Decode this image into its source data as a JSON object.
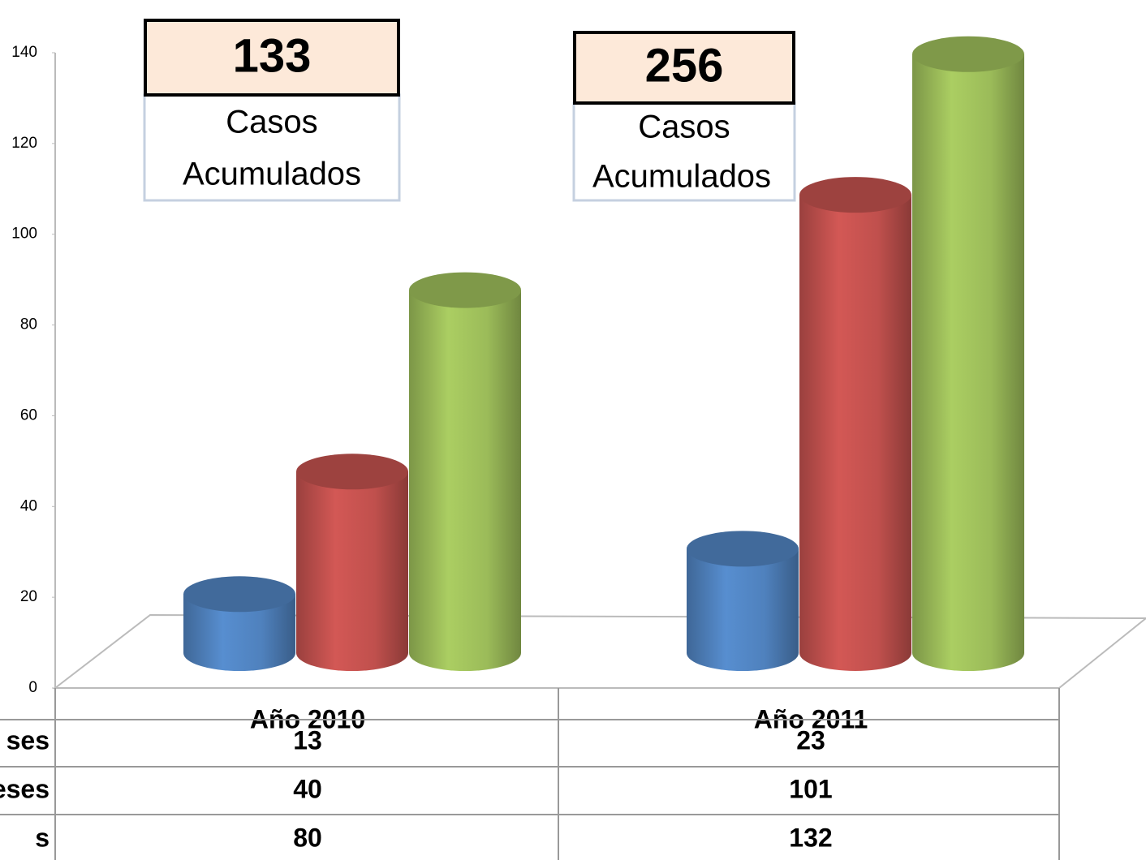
{
  "chart_data": {
    "type": "bar3d",
    "categories": [
      "Año 2010",
      "Año 2011"
    ],
    "series": [
      {
        "name": "ses",
        "color": "#4f81bd",
        "values": [
          13,
          23
        ]
      },
      {
        "name": "eses",
        "color": "#c0504d",
        "values": [
          40,
          101
        ]
      },
      {
        "name": "s",
        "color": "#9bbb59",
        "values": [
          80,
          132
        ]
      }
    ],
    "ylim": [
      0,
      140
    ],
    "yticks": [
      0,
      20,
      40,
      60,
      80,
      100,
      120,
      140
    ],
    "annotations": [
      {
        "value": "133",
        "lines": [
          "Casos",
          "Acumulados"
        ]
      },
      {
        "value": "256",
        "lines": [
          "Casos",
          "Acumulados"
        ]
      }
    ]
  }
}
